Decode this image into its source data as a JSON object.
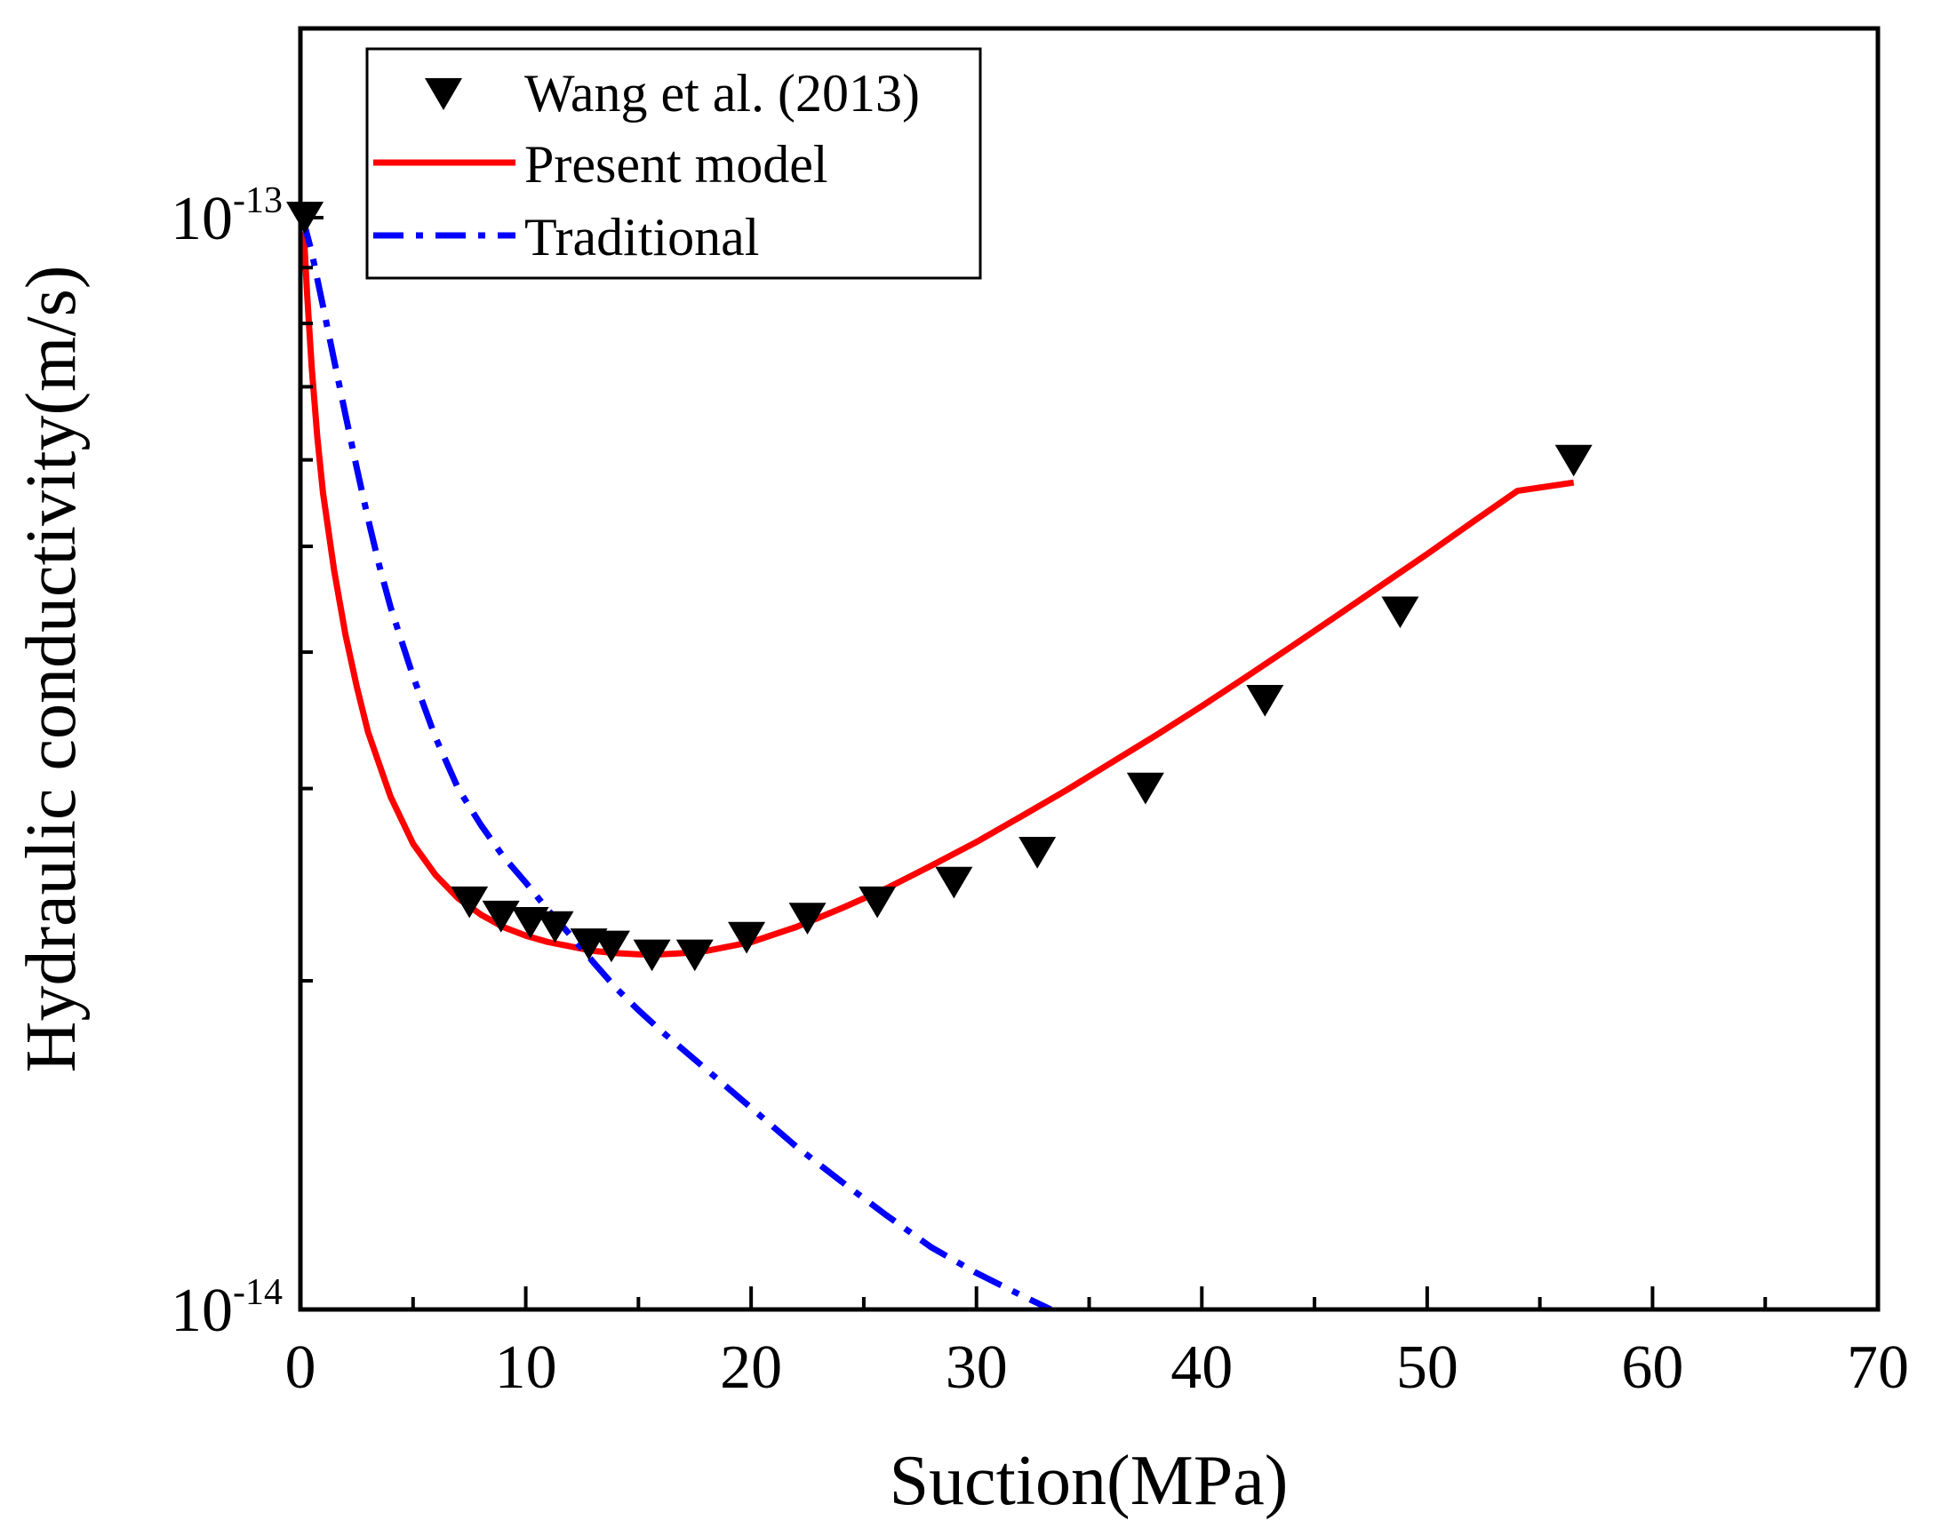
{
  "chart_data": {
    "type": "line",
    "title": "",
    "xlabel": "Suction(MPa)",
    "ylabel": "Hydraulic conductivity(m/s)",
    "x_scale": "linear",
    "y_scale": "log",
    "xlim": [
      0,
      70
    ],
    "ylim": [
      1e-14,
      1.6e-13
    ],
    "x_ticks": [
      0,
      10,
      20,
      30,
      40,
      50,
      60,
      70
    ],
    "x_tick_labels": [
      "0",
      "10",
      "20",
      "30",
      "40",
      "50",
      "60",
      "70"
    ],
    "y_ticks": [
      1e-14,
      1e-13
    ],
    "y_tick_labels": [
      {
        "base": "10",
        "exponent": "-14"
      },
      {
        "base": "10",
        "exponent": "-13"
      }
    ],
    "legend_position": "top-left",
    "series": [
      {
        "name": "Wang et al. (2013)",
        "kind": "scatter",
        "marker": "down-triangle",
        "color": "#000000",
        "x": [
          0.2,
          7.5,
          8.9,
          10.2,
          11.3,
          12.8,
          13.8,
          15.6,
          17.5,
          19.8,
          22.5,
          25.6,
          29.0,
          32.7,
          37.5,
          42.8,
          48.8,
          56.5
        ],
        "y": [
          1e-13,
          2.36e-14,
          2.29e-14,
          2.26e-14,
          2.24e-14,
          2.16e-14,
          2.15e-14,
          2.11e-14,
          2.11e-14,
          2.19e-14,
          2.28e-14,
          2.36e-14,
          2.46e-14,
          2.62e-14,
          3e-14,
          3.61e-14,
          4.35e-14,
          5.99e-14
        ]
      },
      {
        "name": "Present model",
        "kind": "line",
        "style": "solid",
        "color": "#ff0000",
        "x": [
          0.15,
          0.3,
          0.5,
          0.75,
          1.0,
          1.5,
          2.0,
          2.5,
          3.0,
          4.0,
          5.0,
          6.0,
          7.0,
          8.0,
          9.0,
          10.0,
          11.0,
          12.0,
          13.0,
          14.0,
          15.0,
          16.0,
          17.0,
          18.0,
          20.0,
          22.0,
          24.0,
          26.0,
          28.0,
          30.0,
          32.0,
          34.0,
          36.0,
          38.0,
          40.0,
          42.0,
          44.0,
          46.0,
          48.0,
          50.0,
          52.0,
          54.0,
          56.5
        ],
        "y": [
          9.7e-14,
          8.5e-14,
          7.3e-14,
          6.3e-14,
          5.6e-14,
          4.75e-14,
          4.15e-14,
          3.72e-14,
          3.38e-14,
          2.95e-14,
          2.67e-14,
          2.5e-14,
          2.38e-14,
          2.3e-14,
          2.24e-14,
          2.2e-14,
          2.17e-14,
          2.15e-14,
          2.13e-14,
          2.12e-14,
          2.115e-14,
          2.115e-14,
          2.12e-14,
          2.13e-14,
          2.17e-14,
          2.24e-14,
          2.33e-14,
          2.43e-14,
          2.55e-14,
          2.68e-14,
          2.83e-14,
          2.99e-14,
          3.17e-14,
          3.36e-14,
          3.57e-14,
          3.8e-14,
          4.05e-14,
          4.32e-14,
          4.61e-14,
          4.92e-14,
          5.26e-14,
          5.62e-14,
          5.72e-14
        ]
      },
      {
        "name": "Traditional",
        "kind": "line",
        "style": "dash-dot",
        "color": "#0000ff",
        "x": [
          0.1,
          0.5,
          1.0,
          1.5,
          2.0,
          2.5,
          3.0,
          3.5,
          4.0,
          5.0,
          6.0,
          7.0,
          8.0,
          9.0,
          10.0,
          11.0,
          12.0,
          13.0,
          14.0,
          15.0,
          16.0,
          18.0,
          20.0,
          22.0,
          24.0,
          26.0,
          28.0,
          30.0,
          32.0,
          33.3
        ],
        "y": [
          1e-13,
          9.3e-14,
          8.3e-14,
          7.4e-14,
          6.6e-14,
          5.9e-14,
          5.3e-14,
          4.8e-14,
          4.4e-14,
          3.8e-14,
          3.34e-14,
          3e-14,
          2.78e-14,
          2.6e-14,
          2.46e-14,
          2.32e-14,
          2.2e-14,
          2.08e-14,
          1.97e-14,
          1.88e-14,
          1.8e-14,
          1.66e-14,
          1.53e-14,
          1.41e-14,
          1.31e-14,
          1.22e-14,
          1.14e-14,
          1.08e-14,
          1.03e-14,
          1e-14
        ]
      }
    ]
  }
}
